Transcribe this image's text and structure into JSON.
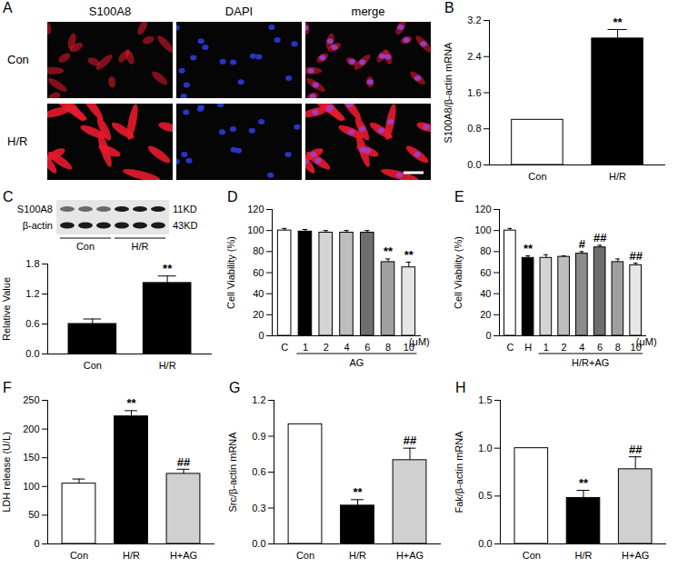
{
  "panel_a": {
    "letter": "A",
    "columns": [
      "S100A8",
      "DAPI",
      "merge"
    ],
    "rows": [
      "Con",
      "H/R"
    ]
  },
  "chart_data": [
    {
      "letter": "B",
      "type": "bar",
      "categories": [
        "Con",
        "H/R"
      ],
      "values": [
        1.0,
        2.8
      ],
      "errors": [
        null,
        0.2
      ],
      "annotations": [
        null,
        "**"
      ],
      "colors": [
        "#ffffff",
        "#000000"
      ],
      "y_label": "S100A8/β-actin mRNA",
      "ylim": [
        0,
        3.2
      ],
      "yticks": [
        {
          "value": 0,
          "label": "0.0"
        },
        {
          "value": 0.8,
          "label": "0.8"
        },
        {
          "value": 1.6,
          "label": "1.6"
        },
        {
          "value": 2.4,
          "label": "2.4"
        },
        {
          "value": 3.2,
          "label": "3.2"
        }
      ]
    },
    {
      "letter": "C",
      "type": "bar",
      "blot": {
        "bands": [
          {
            "name": "S100A8",
            "size": "11KD"
          },
          {
            "name": "β-actin",
            "size": "43KD"
          }
        ],
        "groups": [
          "Con",
          "H/R"
        ]
      },
      "categories": [
        "Con",
        "H/R"
      ],
      "values": [
        0.6,
        1.42
      ],
      "errors": [
        0.1,
        0.14
      ],
      "annotations": [
        null,
        "**"
      ],
      "colors": [
        "#000000",
        "#000000"
      ],
      "y_label": "Relative Value",
      "ylim": [
        0,
        1.8
      ],
      "yticks": [
        {
          "value": 0,
          "label": "0.0"
        },
        {
          "value": 0.6,
          "label": "0.6"
        },
        {
          "value": 1.2,
          "label": "1.2"
        },
        {
          "value": 1.8,
          "label": "1.8"
        }
      ]
    },
    {
      "letter": "D",
      "type": "bar",
      "categories": [
        "C",
        "1",
        "2",
        "4",
        "6",
        "8",
        "10"
      ],
      "values": [
        100,
        99,
        98,
        98,
        98,
        70,
        65
      ],
      "errors": [
        2,
        2,
        2,
        2,
        2,
        3,
        5
      ],
      "annotations": [
        null,
        null,
        null,
        null,
        null,
        "**",
        "**"
      ],
      "colors": [
        "#ffffff",
        "#000000",
        "#d4d4d4",
        "#bdbdbd",
        "#6e6e6e",
        "#a0a0a0",
        "#e6e6e6"
      ],
      "y_label": "Cell Viability (%)",
      "x_group_label": "AG",
      "x_unit_label": "(μM)",
      "ylim": [
        0,
        120
      ],
      "yticks": [
        0,
        20,
        40,
        60,
        80,
        100,
        120
      ]
    },
    {
      "letter": "E",
      "type": "bar",
      "categories": [
        "C",
        "H",
        "1",
        "2",
        "4",
        "6",
        "8",
        "10"
      ],
      "values": [
        100,
        74,
        74,
        75,
        78,
        84,
        70,
        67
      ],
      "errors": [
        2,
        2,
        3,
        1,
        2,
        2,
        3,
        2
      ],
      "annotations": [
        null,
        "**",
        null,
        null,
        "#",
        "##",
        null,
        "##"
      ],
      "colors": [
        "#ffffff",
        "#000000",
        "#d4d4d4",
        "#bdbdbd",
        "#8c8c8c",
        "#6e6e6e",
        "#a0a0a0",
        "#e6e6e6"
      ],
      "y_label": "Cell Viability (%)",
      "x_group_label": "H/R+AG",
      "x_unit_label": "(μM)",
      "ylim": [
        0,
        120
      ],
      "yticks": [
        0,
        20,
        40,
        60,
        80,
        100,
        120
      ]
    },
    {
      "letter": "F",
      "type": "bar",
      "categories": [
        "Con",
        "H/R",
        "H+AG"
      ],
      "values": [
        105,
        222,
        122
      ],
      "errors": [
        8,
        10,
        8
      ],
      "annotations": [
        null,
        "**",
        "##"
      ],
      "colors": [
        "#ffffff",
        "#000000",
        "#d0d0d0"
      ],
      "y_label": "LDH release (U/L)",
      "ylim": [
        0,
        250
      ],
      "yticks": [
        0,
        50,
        100,
        150,
        200,
        250
      ]
    },
    {
      "letter": "G",
      "type": "bar",
      "categories": [
        "Con",
        "H/R",
        "H+AG"
      ],
      "values": [
        1.0,
        0.32,
        0.7
      ],
      "errors": [
        null,
        0.05,
        0.1
      ],
      "annotations": [
        null,
        "**",
        "##"
      ],
      "colors": [
        "#ffffff",
        "#000000",
        "#d0d0d0"
      ],
      "y_label": "Src/β-actin mRNA",
      "ylim": [
        0,
        1.2
      ],
      "yticks": [
        {
          "value": 0,
          "label": "0.0"
        },
        {
          "value": 0.3,
          "label": "0.3"
        },
        {
          "value": 0.6,
          "label": "0.6"
        },
        {
          "value": 0.9,
          "label": "0.9"
        },
        {
          "value": 1.2,
          "label": "1.2"
        }
      ]
    },
    {
      "letter": "H",
      "type": "bar",
      "categories": [
        "Con",
        "H/R",
        "H+AG"
      ],
      "values": [
        1.0,
        0.48,
        0.78
      ],
      "errors": [
        null,
        0.08,
        0.13
      ],
      "annotations": [
        null,
        "**",
        "##"
      ],
      "colors": [
        "#ffffff",
        "#000000",
        "#d0d0d0"
      ],
      "y_label": "Fak/β-actin mRNA",
      "ylim": [
        0,
        1.5
      ],
      "yticks": [
        {
          "value": 0,
          "label": "0.0"
        },
        {
          "value": 0.5,
          "label": "0.5"
        },
        {
          "value": 1.0,
          "label": "1.0"
        },
        {
          "value": 1.5,
          "label": "1.5"
        }
      ]
    }
  ]
}
